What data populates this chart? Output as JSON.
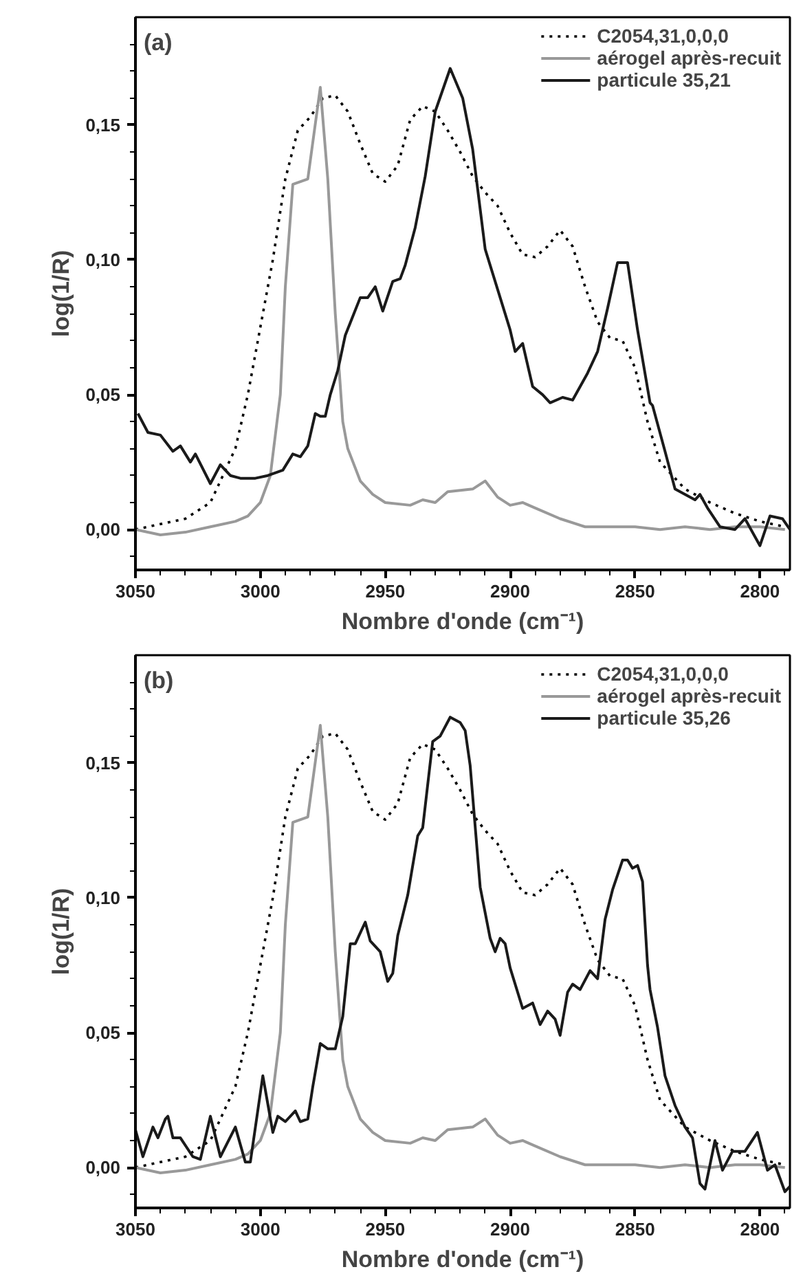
{
  "chart_data": [
    {
      "type": "line",
      "xlabel": "Nombre d'onde (cm⁻¹)",
      "ylabel": "log(1/R)",
      "annotations": [
        "(a)"
      ],
      "legend": "top right",
      "grid": false,
      "xlim": [
        3050,
        2788
      ],
      "ylim": [
        -0.015,
        0.19
      ],
      "xticks": [
        3050,
        3000,
        2950,
        2900,
        2850,
        2800,
        {
          "value": 3040,
          "label": null
        },
        {
          "value": 3030,
          "label": null
        },
        {
          "value": 3020,
          "label": null
        },
        {
          "value": 3010,
          "label": null
        },
        {
          "value": 2990,
          "label": null
        },
        {
          "value": 2980,
          "label": null
        },
        {
          "value": 2970,
          "label": null
        },
        {
          "value": 2960,
          "label": null
        },
        {
          "value": 2940,
          "label": null
        },
        {
          "value": 2930,
          "label": null
        },
        {
          "value": 2920,
          "label": null
        },
        {
          "value": 2910,
          "label": null
        },
        {
          "value": 2890,
          "label": null
        },
        {
          "value": 2880,
          "label": null
        },
        {
          "value": 2870,
          "label": null
        },
        {
          "value": 2860,
          "label": null
        },
        {
          "value": 2840,
          "label": null
        },
        {
          "value": 2830,
          "label": null
        },
        {
          "value": 2820,
          "label": null
        },
        {
          "value": 2810,
          "label": null
        },
        {
          "value": 2790,
          "label": null
        }
      ],
      "yticks": [
        {
          "value": 0,
          "label": "0,00"
        },
        {
          "value": 0.05,
          "label": "0,05"
        },
        {
          "value": 0.1,
          "label": "0,10"
        },
        {
          "value": 0.15,
          "label": "0,15"
        },
        {
          "value": -0.01,
          "label": null
        },
        {
          "value": 0.01,
          "label": null
        },
        {
          "value": 0.02,
          "label": null
        },
        {
          "value": 0.03,
          "label": null
        },
        {
          "value": 0.04,
          "label": null
        },
        {
          "value": 0.06,
          "label": null
        },
        {
          "value": 0.07,
          "label": null
        },
        {
          "value": 0.08,
          "label": null
        },
        {
          "value": 0.09,
          "label": null
        },
        {
          "value": 0.11,
          "label": null
        },
        {
          "value": 0.12,
          "label": null
        },
        {
          "value": 0.13,
          "label": null
        },
        {
          "value": 0.14,
          "label": null
        },
        {
          "value": 0.16,
          "label": null
        },
        {
          "value": 0.17,
          "label": null
        },
        {
          "value": 0.18,
          "label": null
        }
      ],
      "series": [
        {
          "name": "C2054,31,0,0,0",
          "color": "#000000",
          "line_style": "dotted",
          "x": [
            3050,
            3040,
            3030,
            3020,
            3010,
            3005,
            3000,
            2995,
            2990,
            2985,
            2980,
            2975,
            2970,
            2965,
            2960,
            2955,
            2950,
            2945,
            2940,
            2935,
            2930,
            2925,
            2920,
            2915,
            2910,
            2905,
            2900,
            2895,
            2890,
            2885,
            2880,
            2875,
            2870,
            2865,
            2860,
            2855,
            2850,
            2845,
            2840,
            2830,
            2820,
            2810,
            2800,
            2790
          ],
          "values": [
            0,
            0.002,
            0.004,
            0.01,
            0.03,
            0.05,
            0.075,
            0.1,
            0.13,
            0.148,
            0.153,
            0.16,
            0.161,
            0.155,
            0.143,
            0.132,
            0.129,
            0.135,
            0.152,
            0.157,
            0.155,
            0.148,
            0.14,
            0.131,
            0.125,
            0.12,
            0.11,
            0.102,
            0.101,
            0.105,
            0.111,
            0.105,
            0.09,
            0.077,
            0.071,
            0.07,
            0.06,
            0.04,
            0.025,
            0.015,
            0.01,
            0.006,
            0.003,
            0.001
          ]
        },
        {
          "name": "aérogel après-recuit",
          "color": "#999999",
          "line_style": "solid",
          "x": [
            3050,
            3040,
            3030,
            3020,
            3010,
            3005,
            3000,
            2996,
            2992,
            2990,
            2987,
            2981,
            2976,
            2973,
            2970,
            2967,
            2965,
            2960,
            2955,
            2950,
            2940,
            2935,
            2930,
            2925,
            2915,
            2910,
            2905,
            2900,
            2895,
            2890,
            2880,
            2870,
            2860,
            2850,
            2840,
            2830,
            2820,
            2810,
            2800,
            2790
          ],
          "values": [
            0,
            -0.002,
            -0.001,
            0.001,
            0.003,
            0.005,
            0.01,
            0.02,
            0.05,
            0.09,
            0.128,
            0.13,
            0.164,
            0.13,
            0.08,
            0.04,
            0.03,
            0.018,
            0.013,
            0.01,
            0.009,
            0.011,
            0.01,
            0.014,
            0.015,
            0.018,
            0.012,
            0.009,
            0.01,
            0.008,
            0.004,
            0.001,
            0.001,
            0.001,
            0,
            0.001,
            0,
            0.001,
            0.001,
            0
          ]
        },
        {
          "name": "particule 35,21",
          "color": "#1a1a1a",
          "line_style": "solid",
          "x": [
            3049,
            3045,
            3040,
            3035,
            3032,
            3028,
            3026,
            3020,
            3016,
            3012,
            3008,
            3002,
            2997,
            2991,
            2987,
            2984,
            2981,
            2978,
            2976,
            2974,
            2972,
            2969,
            2966,
            2960,
            2957,
            2954,
            2951,
            2947,
            2944,
            2942,
            2938,
            2934,
            2930,
            2924,
            2919,
            2915,
            2910,
            2907,
            2903,
            2900,
            2898,
            2895,
            2891,
            2887,
            2884,
            2879,
            2875,
            2869,
            2865,
            2861,
            2857,
            2853,
            2849,
            2844,
            2843,
            2838,
            2834,
            2826,
            2824,
            2821,
            2816,
            2810,
            2806,
            2800,
            2796,
            2791,
            2788
          ],
          "values": [
            0.043,
            0.036,
            0.035,
            0.029,
            0.031,
            0.025,
            0.028,
            0.017,
            0.024,
            0.02,
            0.019,
            0.019,
            0.02,
            0.022,
            0.028,
            0.027,
            0.031,
            0.043,
            0.042,
            0.042,
            0.05,
            0.059,
            0.072,
            0.086,
            0.086,
            0.09,
            0.081,
            0.092,
            0.093,
            0.098,
            0.112,
            0.131,
            0.155,
            0.171,
            0.16,
            0.141,
            0.104,
            0.095,
            0.083,
            0.074,
            0.066,
            0.069,
            0.053,
            0.05,
            0.047,
            0.049,
            0.048,
            0.058,
            0.066,
            0.082,
            0.099,
            0.099,
            0.074,
            0.047,
            0.046,
            0.029,
            0.015,
            0.011,
            0.013,
            0.008,
            0.001,
            0,
            0.004,
            -0.006,
            0.005,
            0.004,
            0
          ]
        }
      ]
    },
    {
      "type": "line",
      "xlabel": "Nombre d'onde (cm⁻¹)",
      "ylabel": "log(1/R)",
      "annotations": [
        "(b)"
      ],
      "legend": "top right",
      "grid": false,
      "xlim": [
        3050,
        2788
      ],
      "ylim": [
        -0.015,
        0.19
      ],
      "xticks": [
        3050,
        3000,
        2950,
        2900,
        2850,
        2800,
        {
          "value": 3040,
          "label": null
        },
        {
          "value": 3030,
          "label": null
        },
        {
          "value": 3020,
          "label": null
        },
        {
          "value": 3010,
          "label": null
        },
        {
          "value": 2990,
          "label": null
        },
        {
          "value": 2980,
          "label": null
        },
        {
          "value": 2970,
          "label": null
        },
        {
          "value": 2960,
          "label": null
        },
        {
          "value": 2940,
          "label": null
        },
        {
          "value": 2930,
          "label": null
        },
        {
          "value": 2920,
          "label": null
        },
        {
          "value": 2910,
          "label": null
        },
        {
          "value": 2890,
          "label": null
        },
        {
          "value": 2880,
          "label": null
        },
        {
          "value": 2870,
          "label": null
        },
        {
          "value": 2860,
          "label": null
        },
        {
          "value": 2840,
          "label": null
        },
        {
          "value": 2830,
          "label": null
        },
        {
          "value": 2820,
          "label": null
        },
        {
          "value": 2810,
          "label": null
        },
        {
          "value": 2790,
          "label": null
        }
      ],
      "yticks": [
        {
          "value": 0,
          "label": "0,00"
        },
        {
          "value": 0.05,
          "label": "0,05"
        },
        {
          "value": 0.1,
          "label": "0,10"
        },
        {
          "value": 0.15,
          "label": "0,15"
        },
        {
          "value": -0.01,
          "label": null
        },
        {
          "value": 0.01,
          "label": null
        },
        {
          "value": 0.02,
          "label": null
        },
        {
          "value": 0.03,
          "label": null
        },
        {
          "value": 0.04,
          "label": null
        },
        {
          "value": 0.06,
          "label": null
        },
        {
          "value": 0.07,
          "label": null
        },
        {
          "value": 0.08,
          "label": null
        },
        {
          "value": 0.09,
          "label": null
        },
        {
          "value": 0.11,
          "label": null
        },
        {
          "value": 0.12,
          "label": null
        },
        {
          "value": 0.13,
          "label": null
        },
        {
          "value": 0.14,
          "label": null
        },
        {
          "value": 0.16,
          "label": null
        },
        {
          "value": 0.17,
          "label": null
        },
        {
          "value": 0.18,
          "label": null
        }
      ],
      "series": [
        {
          "name": "C2054,31,0,0,0",
          "color": "#000000",
          "line_style": "dotted",
          "x": [
            3050,
            3040,
            3030,
            3020,
            3010,
            3005,
            3000,
            2995,
            2990,
            2985,
            2980,
            2975,
            2970,
            2965,
            2960,
            2955,
            2950,
            2945,
            2940,
            2935,
            2930,
            2925,
            2920,
            2915,
            2910,
            2905,
            2900,
            2895,
            2890,
            2885,
            2880,
            2875,
            2870,
            2865,
            2860,
            2855,
            2850,
            2845,
            2840,
            2830,
            2820,
            2810,
            2800,
            2790
          ],
          "values": [
            0,
            0.002,
            0.004,
            0.01,
            0.03,
            0.05,
            0.075,
            0.1,
            0.13,
            0.148,
            0.153,
            0.16,
            0.161,
            0.155,
            0.143,
            0.132,
            0.129,
            0.135,
            0.152,
            0.157,
            0.155,
            0.148,
            0.14,
            0.131,
            0.125,
            0.12,
            0.11,
            0.102,
            0.101,
            0.105,
            0.111,
            0.105,
            0.09,
            0.077,
            0.071,
            0.07,
            0.06,
            0.04,
            0.025,
            0.015,
            0.01,
            0.006,
            0.003,
            0.001
          ]
        },
        {
          "name": "aérogel après-recuit",
          "color": "#999999",
          "line_style": "solid",
          "x": [
            3050,
            3040,
            3030,
            3020,
            3010,
            3005,
            3000,
            2996,
            2992,
            2990,
            2987,
            2981,
            2976,
            2973,
            2970,
            2967,
            2965,
            2960,
            2955,
            2950,
            2940,
            2935,
            2930,
            2925,
            2915,
            2910,
            2905,
            2900,
            2895,
            2890,
            2880,
            2870,
            2860,
            2850,
            2840,
            2830,
            2820,
            2810,
            2800,
            2790
          ],
          "values": [
            0,
            -0.002,
            -0.001,
            0.001,
            0.003,
            0.005,
            0.01,
            0.02,
            0.05,
            0.09,
            0.128,
            0.13,
            0.164,
            0.13,
            0.08,
            0.04,
            0.03,
            0.018,
            0.013,
            0.01,
            0.009,
            0.011,
            0.01,
            0.014,
            0.015,
            0.018,
            0.012,
            0.009,
            0.01,
            0.008,
            0.004,
            0.001,
            0.001,
            0.001,
            0,
            0.001,
            0,
            0.001,
            0.001,
            0
          ]
        },
        {
          "name": "particule 35,26",
          "color": "#1a1a1a",
          "line_style": "solid",
          "x": [
            3050,
            3047,
            3043,
            3041,
            3038,
            3037,
            3035,
            3032,
            3027,
            3024,
            3020,
            3016,
            3010,
            3006,
            3004,
            2999,
            2995,
            2993,
            2990,
            2986,
            2984,
            2981,
            2979,
            2976,
            2973,
            2970,
            2967,
            2964,
            2962,
            2958,
            2956,
            2952,
            2949,
            2947,
            2945,
            2941,
            2937,
            2935,
            2931,
            2928,
            2924,
            2920,
            2918,
            2916,
            2912,
            2908,
            2906,
            2904,
            2902,
            2900,
            2895,
            2891,
            2888,
            2885,
            2882,
            2880,
            2877,
            2875,
            2872,
            2868,
            2865,
            2862,
            2859,
            2855,
            2853,
            2851,
            2849,
            2847,
            2845,
            2844,
            2841,
            2838,
            2834,
            2830,
            2827,
            2824,
            2822,
            2818,
            2815,
            2811,
            2806,
            2801,
            2797,
            2794,
            2790,
            2788
          ],
          "values": [
            0.014,
            0.004,
            0.015,
            0.011,
            0.018,
            0.019,
            0.011,
            0.011,
            0.004,
            0.003,
            0.019,
            0.004,
            0.015,
            0.002,
            0.002,
            0.034,
            0.013,
            0.019,
            0.017,
            0.021,
            0.017,
            0.018,
            0.03,
            0.046,
            0.044,
            0.044,
            0.056,
            0.083,
            0.083,
            0.091,
            0.084,
            0.08,
            0.069,
            0.072,
            0.086,
            0.101,
            0.123,
            0.126,
            0.158,
            0.16,
            0.167,
            0.165,
            0.162,
            0.149,
            0.104,
            0.085,
            0.08,
            0.085,
            0.083,
            0.074,
            0.059,
            0.061,
            0.053,
            0.058,
            0.055,
            0.049,
            0.065,
            0.068,
            0.066,
            0.073,
            0.07,
            0.092,
            0.103,
            0.114,
            0.114,
            0.111,
            0.112,
            0.106,
            0.075,
            0.066,
            0.052,
            0.034,
            0.023,
            0.015,
            0.011,
            -0.006,
            -0.008,
            0.01,
            -0.001,
            0.006,
            0.006,
            0.013,
            -0.001,
            0.001,
            -0.009,
            -0.007
          ]
        }
      ]
    }
  ]
}
